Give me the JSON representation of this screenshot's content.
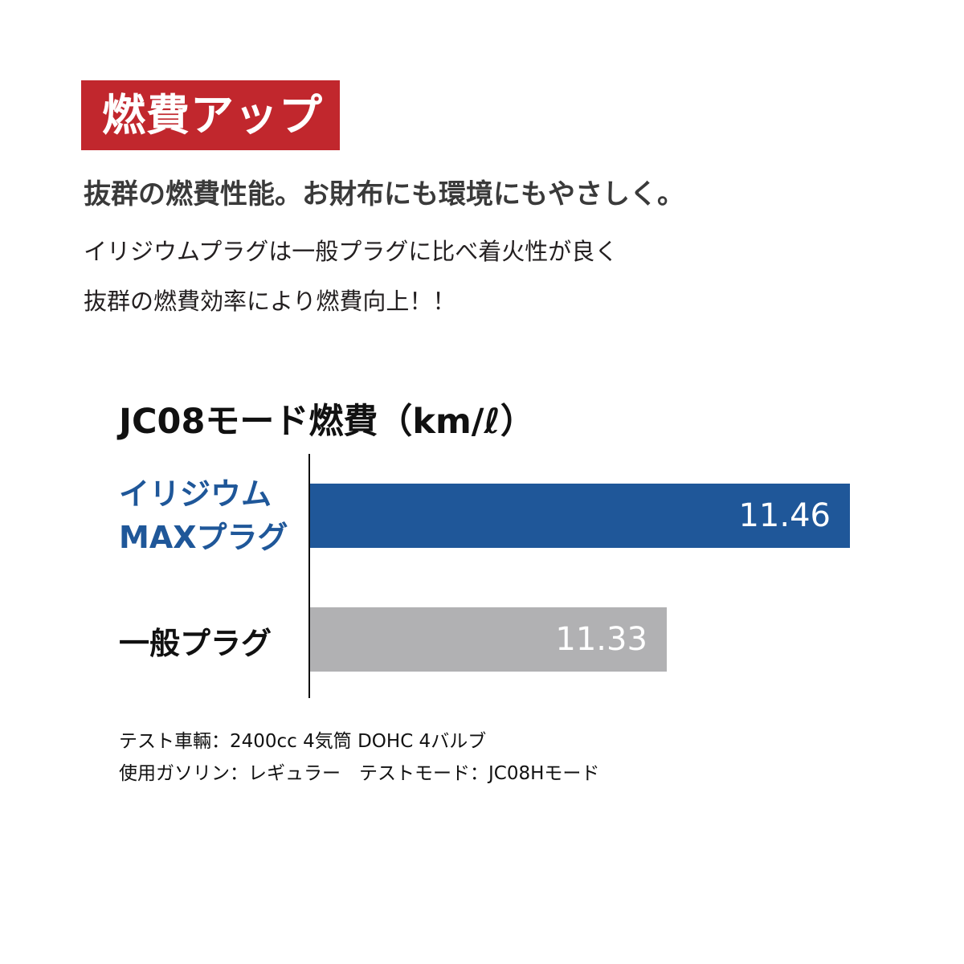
{
  "badge": {
    "label": "燃費アップ",
    "color": "#c1272d"
  },
  "headline": "抜群の燃費性能。お財布にも環境にもやさしく。",
  "body_lines": [
    "イリジウムプラグは一般プラグに比べ着火性が良く",
    "抜群の燃費効率により燃費向上！！"
  ],
  "chart_data": {
    "type": "bar",
    "orientation": "horizontal",
    "title": "JC08モード燃費（km/ℓ）",
    "categories": [
      "イリジウム MAXプラグ",
      "一般プラグ"
    ],
    "category_lines": [
      [
        "イリジウム",
        "MAXプラグ"
      ],
      [
        "一般プラグ"
      ]
    ],
    "values": [
      11.46,
      11.33
    ],
    "value_labels": [
      "11.46",
      "11.33"
    ],
    "colors": [
      "#1f5799",
      "#b1b1b3"
    ],
    "label_colors": [
      "#1f5799",
      "#111111"
    ],
    "xlim": [
      11.077,
      11.46
    ],
    "grid": false
  },
  "notes": [
    "テスト車輛：2400cc 4気筒 DOHC 4バルブ",
    "使用ガソリン：レギュラー　テストモード：JC08Hモード"
  ]
}
